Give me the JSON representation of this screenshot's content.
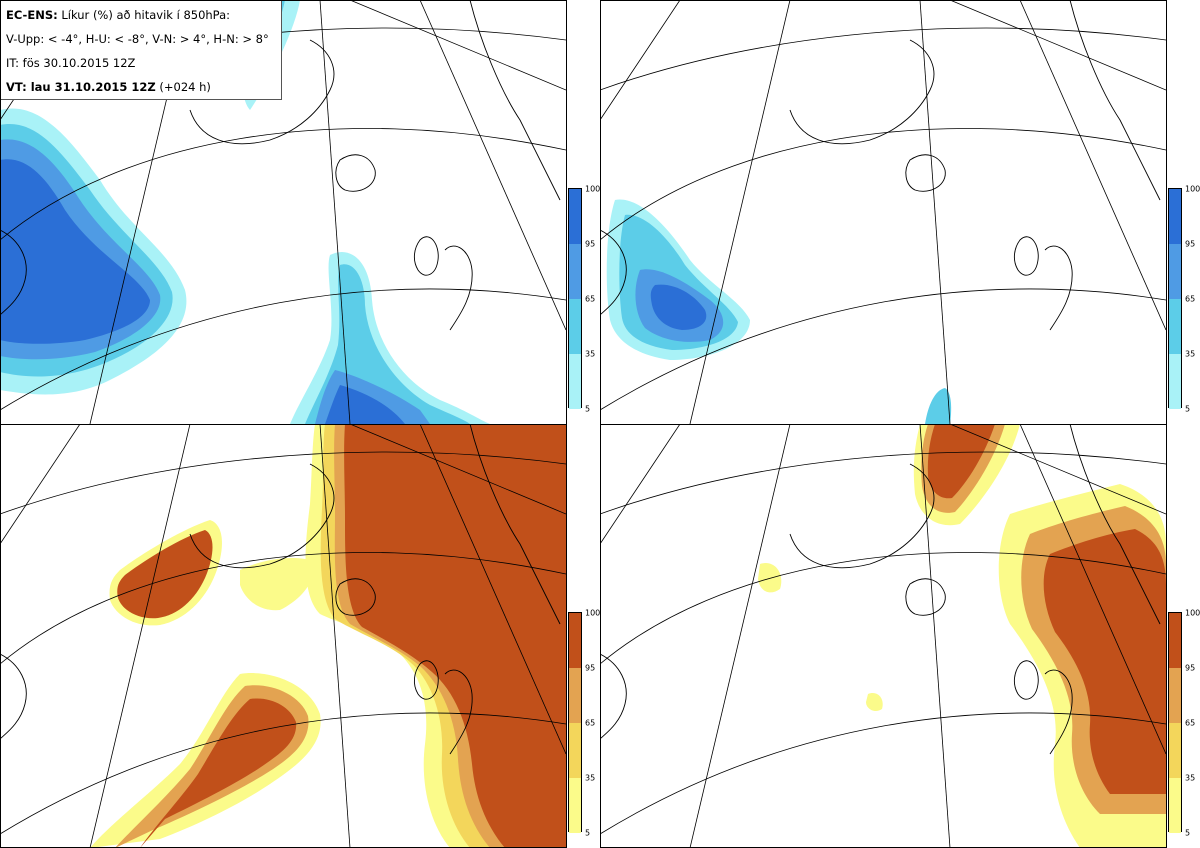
{
  "title": {
    "prefix": "EC-ENS:",
    "line1": "Líkur (%) að hitavik í 850hPa:",
    "line2": "V-Upp: < -4°, H-U: < -8°, V-N: > 4°, H-N: > 8°",
    "line3": "IT: fös 30.10.2015 12Z",
    "vt_prefix": "VT: lau 31.10.2015 12Z",
    "vt_suffix": "(+024 h)"
  },
  "panels": [
    {
      "id": "V-Upp",
      "scheme": "cold"
    },
    {
      "id": "H-U",
      "scheme": "cold"
    },
    {
      "id": "V-N",
      "scheme": "warm"
    },
    {
      "id": "H-N",
      "scheme": "warm"
    }
  ],
  "colorbars": {
    "cold": {
      "ticks": [
        "100",
        "95",
        "65",
        "35",
        "5"
      ],
      "colors": [
        "#2b6fd6",
        "#4f9be4",
        "#5ccde8",
        "#a9f2f7"
      ]
    },
    "warm": {
      "ticks": [
        "100",
        "95",
        "65",
        "35",
        "5"
      ],
      "colors": [
        "#c1501a",
        "#e3a351",
        "#f3d65b",
        "#fbfb8a"
      ]
    }
  },
  "colors": {
    "cold_levels": [
      "#a9f2f7",
      "#5ccde8",
      "#4f9be4",
      "#2b6fd6"
    ],
    "warm_levels": [
      "#fbfb8a",
      "#f3d65b",
      "#e3a351",
      "#c1501a"
    ]
  }
}
